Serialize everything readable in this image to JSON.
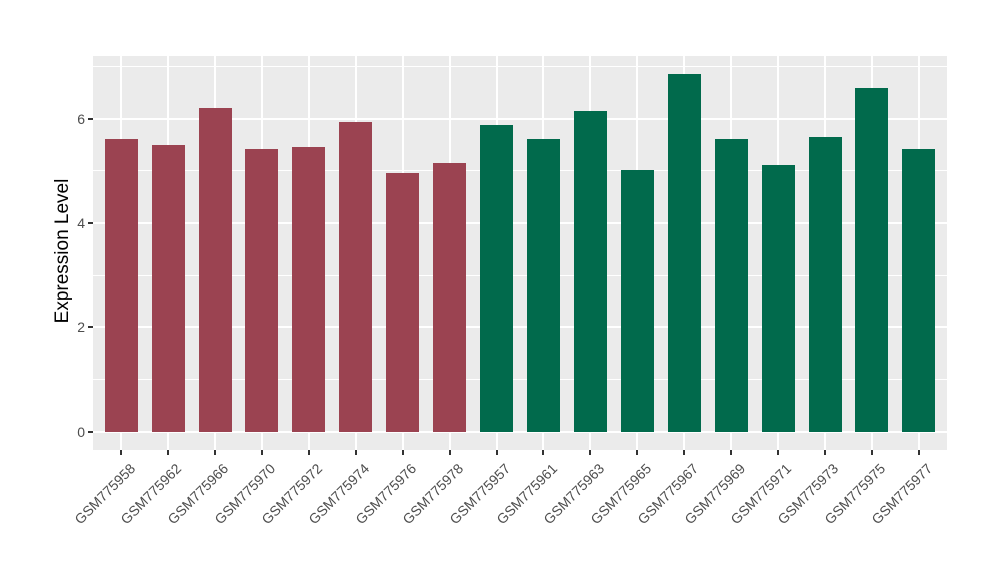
{
  "chart_data": {
    "type": "bar",
    "title": "",
    "xlabel": "",
    "ylabel": "Expression Level",
    "ylim": [
      -0.35,
      7.2
    ],
    "yticks": [
      0,
      2,
      4,
      6
    ],
    "yticks_minor": [
      1,
      3,
      5,
      7
    ],
    "grid": "white major+minor horizontal lines and major vertical lines on grey panel",
    "legend_position": "none",
    "categories": [
      "GSM775958",
      "GSM775962",
      "GSM775966",
      "GSM775970",
      "GSM775972",
      "GSM775974",
      "GSM775976",
      "GSM775978",
      "GSM775957",
      "GSM775961",
      "GSM775963",
      "GSM775965",
      "GSM775967",
      "GSM775969",
      "GSM775971",
      "GSM775973",
      "GSM775975",
      "GSM775977"
    ],
    "values": [
      5.6,
      5.5,
      6.2,
      5.41,
      5.45,
      5.94,
      4.96,
      5.15,
      5.88,
      5.61,
      6.14,
      5.02,
      6.85,
      5.61,
      5.11,
      5.64,
      6.58,
      5.41
    ],
    "bar_groups": [
      "red",
      "red",
      "red",
      "red",
      "red",
      "red",
      "red",
      "red",
      "green",
      "green",
      "green",
      "green",
      "green",
      "green",
      "green",
      "green",
      "green",
      "green"
    ]
  },
  "colors": {
    "bar_red": "#9B4351",
    "bar_green": "#016A4C",
    "panel_bg": "#EBEBEB",
    "grid": "#FFFFFF",
    "tick_mark": "#333333",
    "tick_label": "#4D4D4D",
    "axis_title": "#000000",
    "figure_bg": "#FFFFFF"
  }
}
